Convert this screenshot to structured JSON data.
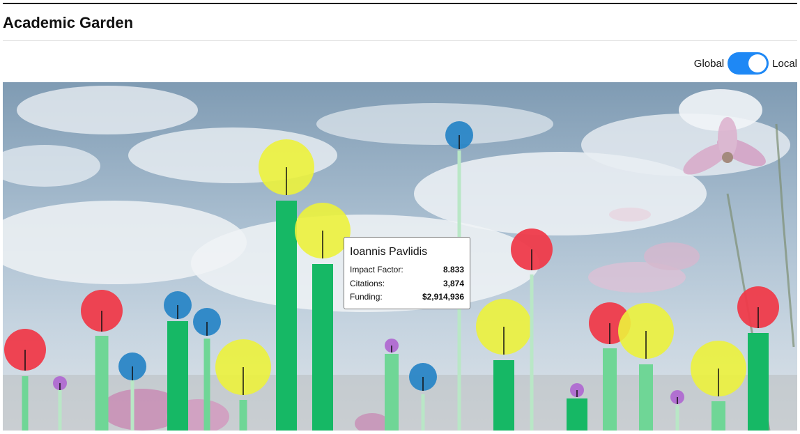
{
  "header": {
    "title": "Academic Garden"
  },
  "toggle": {
    "left_label": "Global",
    "right_label": "Local",
    "selected": "Local",
    "color": "#1e88f5"
  },
  "colors": {
    "red": "#ef3b4a",
    "yellow": "#ecf23c",
    "blue": "#2a86c6",
    "purple": "#b06ad1",
    "stem_light": "#b9e7c6",
    "bar_dark": "#16b865",
    "bar_light": "#6fd696"
  },
  "tooltip": {
    "name": "Ioannis Pavlidis",
    "rows": [
      {
        "label": "Impact Factor:",
        "value": "8.833"
      },
      {
        "label": "Citations:",
        "value": "3,874"
      },
      {
        "label": "Funding:",
        "value": "$2,914,936"
      }
    ]
  },
  "flowers": [
    {
      "color": "red"
    },
    {
      "color": "purple"
    },
    {
      "color": "red"
    },
    {
      "color": "blue"
    },
    {
      "color": "blue"
    },
    {
      "color": "blue"
    },
    {
      "color": "yellow"
    },
    {
      "color": "yellow"
    },
    {
      "color": "yellow"
    },
    {
      "color": "purple"
    },
    {
      "color": "blue"
    },
    {
      "color": "blue"
    },
    {
      "color": "yellow"
    },
    {
      "color": "red"
    },
    {
      "color": "purple"
    },
    {
      "color": "red"
    },
    {
      "color": "yellow"
    },
    {
      "color": "purple"
    },
    {
      "color": "yellow"
    },
    {
      "color": "red"
    }
  ]
}
